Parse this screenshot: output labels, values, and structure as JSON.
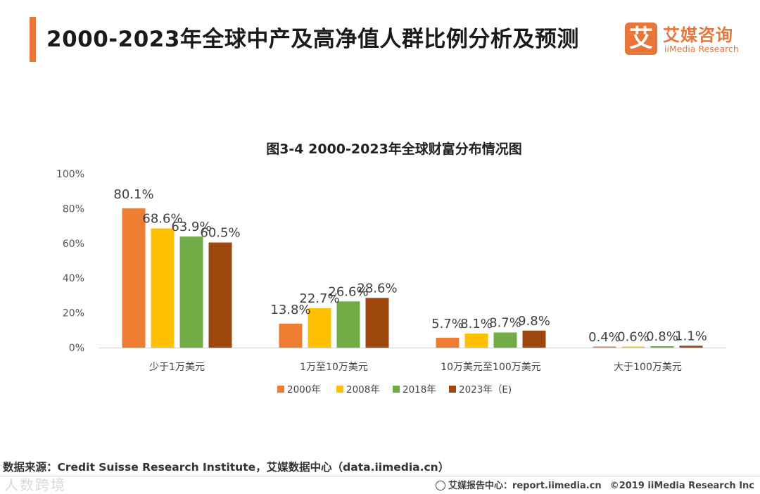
{
  "header": {
    "title": "2000-2023年全球中产及高净值人群比例分析及预测"
  },
  "logo": {
    "mark": "艾",
    "name_cn": "艾媒咨询",
    "name_en": "iiMedia Research"
  },
  "source": "数据来源：Credit Suisse Research Institute，艾媒数据中心（data.iimedia.cn）",
  "footer": {
    "report_center": "艾媒报告中心：report.iimedia.cn",
    "copyright": "©2019  iiMedia Research  Inc"
  },
  "watermark": "人数跨境",
  "colors": {
    "accent": "#e8763a",
    "series": [
      "#ed7d31",
      "#ffc000",
      "#70ad47",
      "#9e480e"
    ]
  },
  "chart_data": {
    "type": "bar",
    "title": "图3-4 2000-2023年全球财富分布情况图",
    "categories": [
      "少于1万美元",
      "1万至10万美元",
      "10万美元至100万美元",
      "大于100万美元"
    ],
    "series": [
      {
        "name": "2000年",
        "values": [
          80.1,
          13.8,
          5.7,
          0.4
        ]
      },
      {
        "name": "2008年",
        "values": [
          68.6,
          22.7,
          8.1,
          0.6
        ]
      },
      {
        "name": "2018年",
        "values": [
          63.9,
          26.6,
          8.7,
          0.8
        ]
      },
      {
        "name": "2023年（E)",
        "values": [
          60.5,
          28.6,
          9.8,
          1.1
        ]
      }
    ],
    "ylim": [
      0,
      100
    ],
    "yticks": [
      0,
      20,
      40,
      60,
      80,
      100
    ],
    "ytick_suffix": "%",
    "value_suffix": "%",
    "xlabel": "",
    "ylabel": "",
    "legend": "bottom",
    "grid": false
  }
}
